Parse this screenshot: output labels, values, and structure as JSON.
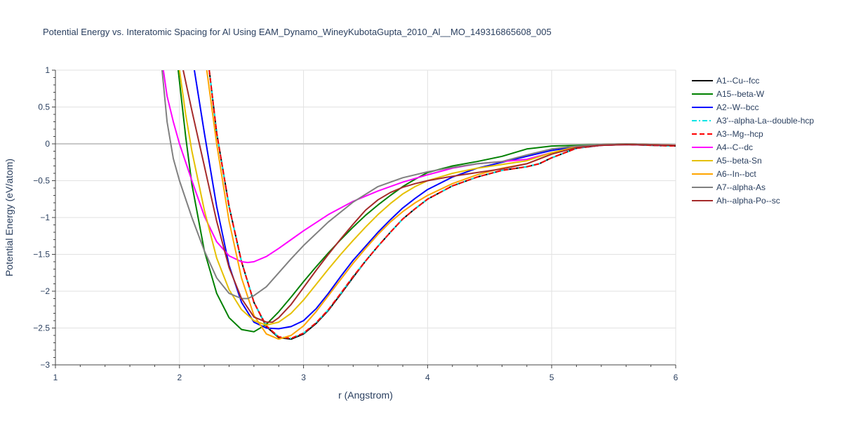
{
  "chart_data": {
    "type": "line",
    "title": "Potential Energy vs. Interatomic Spacing for Al Using EAM_Dynamo_WineyKubotaGupta_2010_Al__MO_149316865608_005",
    "xlabel": "r (Angstrom)",
    "ylabel": "Potential Energy (eV/atom)",
    "xlim": [
      1,
      6
    ],
    "ylim": [
      -3,
      1
    ],
    "xticks": [
      1,
      2,
      3,
      4,
      5,
      6
    ],
    "yticks": [
      1,
      0.5,
      0,
      -0.5,
      -1,
      -1.5,
      -2,
      -2.5,
      -3
    ],
    "ytick_labels": [
      "1",
      "0.5",
      "0",
      "−0.5",
      "−1",
      "−1.5",
      "−2",
      "−2.5",
      "−3"
    ],
    "grid": true,
    "legend_position": "right",
    "series": [
      {
        "name": "A1--Cu--fcc",
        "color": "#000000",
        "dash": "solid",
        "x": [
          2.24,
          2.3,
          2.4,
          2.5,
          2.6,
          2.7,
          2.8,
          2.9,
          3.0,
          3.1,
          3.2,
          3.3,
          3.4,
          3.5,
          3.6,
          3.7,
          3.8,
          3.9,
          4.0,
          4.2,
          4.4,
          4.6,
          4.8,
          4.9,
          5.0,
          5.2,
          5.4,
          5.6,
          5.8,
          6.0
        ],
        "y": [
          1.0,
          0.15,
          -0.85,
          -1.6,
          -2.15,
          -2.48,
          -2.63,
          -2.65,
          -2.58,
          -2.44,
          -2.26,
          -2.04,
          -1.81,
          -1.59,
          -1.39,
          -1.2,
          -1.02,
          -0.88,
          -0.75,
          -0.57,
          -0.45,
          -0.36,
          -0.31,
          -0.27,
          -0.19,
          -0.06,
          -0.02,
          -0.01,
          -0.02,
          -0.03
        ]
      },
      {
        "name": "A15--beta-W",
        "color": "#008000",
        "dash": "solid",
        "x": [
          1.99,
          2.05,
          2.1,
          2.2,
          2.3,
          2.4,
          2.5,
          2.6,
          2.7,
          2.8,
          2.9,
          3.0,
          3.1,
          3.2,
          3.3,
          3.4,
          3.5,
          3.6,
          3.7,
          3.8,
          3.9,
          4.0,
          4.2,
          4.4,
          4.6,
          4.8,
          5.0,
          5.2,
          5.4,
          5.6,
          6.0
        ],
        "y": [
          1.0,
          0.1,
          -0.55,
          -1.45,
          -2.03,
          -2.36,
          -2.52,
          -2.55,
          -2.45,
          -2.28,
          -2.08,
          -1.87,
          -1.67,
          -1.48,
          -1.3,
          -1.13,
          -0.97,
          -0.83,
          -0.7,
          -0.58,
          -0.48,
          -0.39,
          -0.3,
          -0.24,
          -0.17,
          -0.07,
          -0.03,
          -0.02,
          -0.01,
          -0.01,
          -0.02
        ]
      },
      {
        "name": "A2--W--bcc",
        "color": "#0000ff",
        "dash": "solid",
        "x": [
          2.12,
          2.2,
          2.3,
          2.4,
          2.5,
          2.6,
          2.7,
          2.8,
          2.9,
          3.0,
          3.1,
          3.2,
          3.3,
          3.4,
          3.5,
          3.6,
          3.7,
          3.8,
          3.9,
          4.0,
          4.2,
          4.4,
          4.6,
          4.8,
          5.0,
          5.2,
          5.4,
          5.6,
          6.0
        ],
        "y": [
          1.0,
          0.15,
          -0.85,
          -1.65,
          -2.15,
          -2.42,
          -2.5,
          -2.51,
          -2.48,
          -2.4,
          -2.24,
          -2.03,
          -1.8,
          -1.58,
          -1.39,
          -1.2,
          -1.03,
          -0.87,
          -0.74,
          -0.62,
          -0.45,
          -0.33,
          -0.25,
          -0.17,
          -0.09,
          -0.04,
          -0.01,
          0.0,
          -0.02
        ]
      },
      {
        "name": "A3'--alpha-La--double-hcp",
        "color": "#00e5e5",
        "dash": "dashdot",
        "x": [
          2.24,
          2.3,
          2.4,
          2.5,
          2.6,
          2.7,
          2.8,
          2.9,
          3.0,
          3.1,
          3.2,
          3.3,
          3.4,
          3.5,
          3.6,
          3.7,
          3.8,
          3.9,
          4.0,
          4.2,
          4.4,
          4.6,
          4.8,
          4.9,
          5.0,
          5.2,
          5.4,
          5.6,
          5.8,
          6.0
        ],
        "y": [
          1.0,
          0.15,
          -0.85,
          -1.6,
          -2.15,
          -2.47,
          -2.62,
          -2.64,
          -2.57,
          -2.43,
          -2.25,
          -2.03,
          -1.8,
          -1.59,
          -1.39,
          -1.2,
          -1.02,
          -0.88,
          -0.75,
          -0.57,
          -0.45,
          -0.36,
          -0.31,
          -0.27,
          -0.19,
          -0.06,
          -0.02,
          -0.01,
          -0.02,
          -0.03
        ]
      },
      {
        "name": "A3--Mg--hcp",
        "color": "#ff0000",
        "dash": "dash",
        "x": [
          2.24,
          2.3,
          2.4,
          2.5,
          2.6,
          2.7,
          2.8,
          2.9,
          3.0,
          3.1,
          3.2,
          3.3,
          3.4,
          3.5,
          3.6,
          3.7,
          3.8,
          3.9,
          4.0,
          4.2,
          4.4,
          4.6,
          4.8,
          4.9,
          5.0,
          5.2,
          5.4,
          5.6,
          5.8,
          6.0
        ],
        "y": [
          1.0,
          0.15,
          -0.85,
          -1.6,
          -2.15,
          -2.47,
          -2.62,
          -2.64,
          -2.57,
          -2.43,
          -2.25,
          -2.03,
          -1.8,
          -1.59,
          -1.39,
          -1.2,
          -1.02,
          -0.88,
          -0.75,
          -0.57,
          -0.45,
          -0.36,
          -0.31,
          -0.27,
          -0.19,
          -0.06,
          -0.02,
          -0.01,
          -0.02,
          -0.03
        ]
      },
      {
        "name": "A4--C--dc",
        "color": "#ff00ff",
        "dash": "solid",
        "x": [
          1.87,
          1.9,
          1.95,
          2.0,
          2.1,
          2.2,
          2.3,
          2.4,
          2.5,
          2.55,
          2.6,
          2.7,
          2.8,
          2.9,
          3.0,
          3.2,
          3.4,
          3.6,
          3.8,
          4.0,
          4.2,
          4.4,
          4.6,
          4.8,
          5.0,
          5.2,
          5.4,
          5.6,
          6.0
        ],
        "y": [
          1.0,
          0.65,
          0.3,
          0.0,
          -0.5,
          -0.98,
          -1.33,
          -1.52,
          -1.6,
          -1.61,
          -1.6,
          -1.53,
          -1.42,
          -1.3,
          -1.18,
          -0.96,
          -0.78,
          -0.64,
          -0.52,
          -0.42,
          -0.33,
          -0.27,
          -0.24,
          -0.21,
          -0.12,
          -0.05,
          -0.02,
          -0.01,
          -0.02
        ]
      },
      {
        "name": "A5--beta-Sn",
        "color": "#e5c000",
        "dash": "solid",
        "x": [
          2.0,
          2.05,
          2.1,
          2.2,
          2.3,
          2.4,
          2.5,
          2.6,
          2.7,
          2.8,
          2.9,
          3.0,
          3.1,
          3.2,
          3.3,
          3.4,
          3.5,
          3.6,
          3.7,
          3.8,
          3.9,
          4.0,
          4.2,
          4.4,
          4.6,
          4.8,
          5.0,
          5.2,
          5.4,
          5.6,
          6.0
        ],
        "y": [
          1.0,
          0.4,
          -0.1,
          -0.9,
          -1.55,
          -1.98,
          -2.25,
          -2.4,
          -2.46,
          -2.42,
          -2.3,
          -2.12,
          -1.91,
          -1.7,
          -1.5,
          -1.31,
          -1.13,
          -0.96,
          -0.81,
          -0.68,
          -0.58,
          -0.5,
          -0.4,
          -0.33,
          -0.28,
          -0.23,
          -0.12,
          -0.04,
          -0.01,
          0.0,
          -0.02
        ]
      },
      {
        "name": "A6--In--bct",
        "color": "#ffa500",
        "dash": "solid",
        "x": [
          2.22,
          2.3,
          2.4,
          2.5,
          2.6,
          2.7,
          2.8,
          2.9,
          3.0,
          3.1,
          3.2,
          3.3,
          3.4,
          3.5,
          3.6,
          3.7,
          3.8,
          3.9,
          4.0,
          4.2,
          4.4,
          4.6,
          4.8,
          5.0,
          5.2,
          5.4,
          5.6,
          6.0
        ],
        "y": [
          1.0,
          0.0,
          -1.05,
          -1.82,
          -2.33,
          -2.58,
          -2.65,
          -2.6,
          -2.47,
          -2.28,
          -2.06,
          -1.84,
          -1.62,
          -1.42,
          -1.23,
          -1.06,
          -0.92,
          -0.8,
          -0.7,
          -0.54,
          -0.42,
          -0.33,
          -0.27,
          -0.14,
          -0.04,
          -0.01,
          0.0,
          -0.02
        ]
      },
      {
        "name": "A7--alpha-As",
        "color": "#808080",
        "dash": "solid",
        "x": [
          1.86,
          1.9,
          1.95,
          2.0,
          2.1,
          2.2,
          2.3,
          2.4,
          2.5,
          2.55,
          2.6,
          2.7,
          2.8,
          2.9,
          3.0,
          3.2,
          3.4,
          3.6,
          3.8,
          4.0,
          4.2,
          4.4,
          4.6,
          4.8,
          5.0,
          5.2,
          5.4,
          5.6,
          6.0
        ],
        "y": [
          1.0,
          0.3,
          -0.2,
          -0.5,
          -1.0,
          -1.45,
          -1.82,
          -2.03,
          -2.1,
          -2.1,
          -2.06,
          -1.94,
          -1.75,
          -1.56,
          -1.38,
          -1.06,
          -0.79,
          -0.58,
          -0.46,
          -0.38,
          -0.32,
          -0.27,
          -0.24,
          -0.15,
          -0.07,
          -0.03,
          -0.01,
          0.0,
          -0.02
        ]
      },
      {
        "name": "Ah--alpha-Po--sc",
        "color": "#a52a2a",
        "dash": "solid",
        "x": [
          2.03,
          2.1,
          2.2,
          2.3,
          2.4,
          2.5,
          2.6,
          2.7,
          2.75,
          2.8,
          2.9,
          3.0,
          3.1,
          3.2,
          3.3,
          3.4,
          3.5,
          3.6,
          3.7,
          3.8,
          3.9,
          4.0,
          4.2,
          4.4,
          4.6,
          4.8,
          5.0,
          5.2,
          5.4,
          5.6,
          6.0
        ],
        "y": [
          1.0,
          0.45,
          -0.3,
          -1.05,
          -1.68,
          -2.1,
          -2.35,
          -2.42,
          -2.42,
          -2.36,
          -2.18,
          -1.95,
          -1.72,
          -1.5,
          -1.29,
          -1.09,
          -0.9,
          -0.76,
          -0.66,
          -0.59,
          -0.54,
          -0.5,
          -0.44,
          -0.39,
          -0.34,
          -0.27,
          -0.14,
          -0.05,
          -0.02,
          -0.01,
          -0.02
        ]
      }
    ]
  }
}
